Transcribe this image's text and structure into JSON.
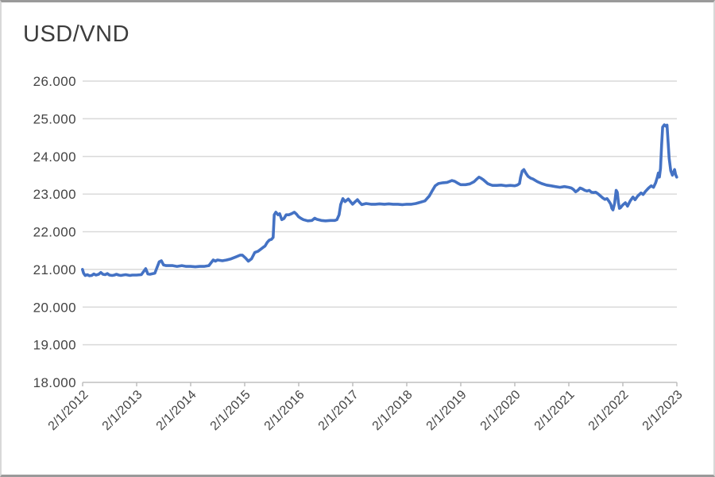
{
  "chart_data": {
    "type": "line",
    "title": "USD/VND",
    "grid": "horizontal",
    "legend": "none",
    "x_axis": {
      "tick_labels": [
        "2/1/2012",
        "2/1/2013",
        "2/1/2014",
        "2/1/2015",
        "2/1/2016",
        "2/1/2017",
        "2/1/2018",
        "2/1/2019",
        "2/1/2020",
        "2/1/2021",
        "2/1/2022",
        "2/1/2023"
      ],
      "range_decimal_years": [
        2012.083,
        2023.083
      ]
    },
    "y_axis": {
      "tick_labels": [
        "26.000",
        "25.000",
        "24.000",
        "23.000",
        "22.000",
        "21.000",
        "20.000",
        "19.000",
        "18.000"
      ],
      "min": 18000,
      "max": 26000,
      "step": 1000
    },
    "series": [
      {
        "name": "USD/VND",
        "points_decimal_year_vnd": [
          [
            2012.08,
            21000
          ],
          [
            2012.1,
            20900
          ],
          [
            2012.13,
            20840
          ],
          [
            2012.17,
            20860
          ],
          [
            2012.21,
            20830
          ],
          [
            2012.25,
            20840
          ],
          [
            2012.29,
            20880
          ],
          [
            2012.33,
            20850
          ],
          [
            2012.38,
            20870
          ],
          [
            2012.42,
            20920
          ],
          [
            2012.46,
            20870
          ],
          [
            2012.5,
            20860
          ],
          [
            2012.54,
            20890
          ],
          [
            2012.58,
            20850
          ],
          [
            2012.63,
            20840
          ],
          [
            2012.67,
            20850
          ],
          [
            2012.71,
            20870
          ],
          [
            2012.75,
            20850
          ],
          [
            2012.79,
            20840
          ],
          [
            2012.83,
            20850
          ],
          [
            2012.88,
            20860
          ],
          [
            2012.92,
            20850
          ],
          [
            2012.96,
            20840
          ],
          [
            2013.0,
            20850
          ],
          [
            2013.08,
            20850
          ],
          [
            2013.17,
            20860
          ],
          [
            2013.25,
            21020
          ],
          [
            2013.29,
            20880
          ],
          [
            2013.33,
            20870
          ],
          [
            2013.42,
            20900
          ],
          [
            2013.5,
            21200
          ],
          [
            2013.54,
            21230
          ],
          [
            2013.58,
            21120
          ],
          [
            2013.63,
            21100
          ],
          [
            2013.67,
            21100
          ],
          [
            2013.75,
            21100
          ],
          [
            2013.83,
            21080
          ],
          [
            2013.92,
            21100
          ],
          [
            2014.0,
            21080
          ],
          [
            2014.08,
            21080
          ],
          [
            2014.17,
            21070
          ],
          [
            2014.25,
            21080
          ],
          [
            2014.33,
            21080
          ],
          [
            2014.42,
            21100
          ],
          [
            2014.5,
            21250
          ],
          [
            2014.54,
            21220
          ],
          [
            2014.58,
            21250
          ],
          [
            2014.67,
            21230
          ],
          [
            2014.75,
            21250
          ],
          [
            2014.83,
            21280
          ],
          [
            2014.92,
            21330
          ],
          [
            2015.0,
            21380
          ],
          [
            2015.04,
            21380
          ],
          [
            2015.1,
            21300
          ],
          [
            2015.15,
            21220
          ],
          [
            2015.21,
            21280
          ],
          [
            2015.27,
            21450
          ],
          [
            2015.33,
            21480
          ],
          [
            2015.42,
            21580
          ],
          [
            2015.46,
            21620
          ],
          [
            2015.5,
            21720
          ],
          [
            2015.54,
            21780
          ],
          [
            2015.58,
            21800
          ],
          [
            2015.61,
            21850
          ],
          [
            2015.63,
            22450
          ],
          [
            2015.66,
            22520
          ],
          [
            2015.7,
            22450
          ],
          [
            2015.73,
            22480
          ],
          [
            2015.77,
            22320
          ],
          [
            2015.81,
            22350
          ],
          [
            2015.85,
            22450
          ],
          [
            2015.9,
            22450
          ],
          [
            2015.95,
            22480
          ],
          [
            2016.0,
            22520
          ],
          [
            2016.04,
            22470
          ],
          [
            2016.08,
            22400
          ],
          [
            2016.13,
            22350
          ],
          [
            2016.17,
            22320
          ],
          [
            2016.25,
            22290
          ],
          [
            2016.33,
            22300
          ],
          [
            2016.38,
            22360
          ],
          [
            2016.42,
            22330
          ],
          [
            2016.5,
            22300
          ],
          [
            2016.58,
            22290
          ],
          [
            2016.67,
            22300
          ],
          [
            2016.75,
            22300
          ],
          [
            2016.79,
            22320
          ],
          [
            2016.83,
            22450
          ],
          [
            2016.86,
            22720
          ],
          [
            2016.9,
            22880
          ],
          [
            2016.94,
            22800
          ],
          [
            2017.0,
            22870
          ],
          [
            2017.04,
            22800
          ],
          [
            2017.08,
            22730
          ],
          [
            2017.13,
            22800
          ],
          [
            2017.17,
            22850
          ],
          [
            2017.21,
            22780
          ],
          [
            2017.25,
            22720
          ],
          [
            2017.33,
            22750
          ],
          [
            2017.42,
            22730
          ],
          [
            2017.5,
            22730
          ],
          [
            2017.58,
            22740
          ],
          [
            2017.67,
            22730
          ],
          [
            2017.75,
            22740
          ],
          [
            2017.83,
            22730
          ],
          [
            2017.92,
            22730
          ],
          [
            2018.0,
            22720
          ],
          [
            2018.08,
            22730
          ],
          [
            2018.17,
            22730
          ],
          [
            2018.25,
            22750
          ],
          [
            2018.33,
            22780
          ],
          [
            2018.42,
            22820
          ],
          [
            2018.5,
            22950
          ],
          [
            2018.56,
            23100
          ],
          [
            2018.61,
            23220
          ],
          [
            2018.67,
            23280
          ],
          [
            2018.75,
            23300
          ],
          [
            2018.83,
            23310
          ],
          [
            2018.92,
            23360
          ],
          [
            2018.97,
            23340
          ],
          [
            2019.04,
            23280
          ],
          [
            2019.08,
            23250
          ],
          [
            2019.17,
            23250
          ],
          [
            2019.25,
            23270
          ],
          [
            2019.33,
            23330
          ],
          [
            2019.38,
            23400
          ],
          [
            2019.42,
            23450
          ],
          [
            2019.46,
            23420
          ],
          [
            2019.5,
            23380
          ],
          [
            2019.54,
            23330
          ],
          [
            2019.58,
            23280
          ],
          [
            2019.63,
            23250
          ],
          [
            2019.67,
            23230
          ],
          [
            2019.75,
            23230
          ],
          [
            2019.83,
            23240
          ],
          [
            2019.92,
            23220
          ],
          [
            2020.0,
            23230
          ],
          [
            2020.08,
            23220
          ],
          [
            2020.13,
            23240
          ],
          [
            2020.17,
            23280
          ],
          [
            2020.19,
            23450
          ],
          [
            2020.22,
            23610
          ],
          [
            2020.25,
            23650
          ],
          [
            2020.29,
            23550
          ],
          [
            2020.33,
            23470
          ],
          [
            2020.38,
            23420
          ],
          [
            2020.42,
            23400
          ],
          [
            2020.5,
            23330
          ],
          [
            2020.58,
            23280
          ],
          [
            2020.67,
            23240
          ],
          [
            2020.75,
            23220
          ],
          [
            2020.83,
            23200
          ],
          [
            2020.92,
            23180
          ],
          [
            2021.0,
            23200
          ],
          [
            2021.08,
            23180
          ],
          [
            2021.13,
            23160
          ],
          [
            2021.17,
            23120
          ],
          [
            2021.21,
            23060
          ],
          [
            2021.25,
            23100
          ],
          [
            2021.29,
            23160
          ],
          [
            2021.33,
            23140
          ],
          [
            2021.38,
            23100
          ],
          [
            2021.42,
            23080
          ],
          [
            2021.46,
            23100
          ],
          [
            2021.5,
            23050
          ],
          [
            2021.54,
            23040
          ],
          [
            2021.58,
            23050
          ],
          [
            2021.63,
            23000
          ],
          [
            2021.67,
            22950
          ],
          [
            2021.71,
            22900
          ],
          [
            2021.75,
            22860
          ],
          [
            2021.79,
            22880
          ],
          [
            2021.83,
            22800
          ],
          [
            2021.86,
            22730
          ],
          [
            2021.88,
            22620
          ],
          [
            2021.9,
            22580
          ],
          [
            2021.93,
            22750
          ],
          [
            2021.96,
            23100
          ],
          [
            2021.98,
            23050
          ],
          [
            2022.0,
            22780
          ],
          [
            2022.02,
            22620
          ],
          [
            2022.04,
            22640
          ],
          [
            2022.08,
            22710
          ],
          [
            2022.13,
            22770
          ],
          [
            2022.17,
            22680
          ],
          [
            2022.22,
            22820
          ],
          [
            2022.27,
            22920
          ],
          [
            2022.31,
            22850
          ],
          [
            2022.36,
            22950
          ],
          [
            2022.42,
            23030
          ],
          [
            2022.46,
            22990
          ],
          [
            2022.5,
            23070
          ],
          [
            2022.56,
            23160
          ],
          [
            2022.61,
            23220
          ],
          [
            2022.65,
            23180
          ],
          [
            2022.69,
            23300
          ],
          [
            2022.72,
            23440
          ],
          [
            2022.74,
            23560
          ],
          [
            2022.76,
            23450
          ],
          [
            2022.78,
            23680
          ],
          [
            2022.8,
            24300
          ],
          [
            2022.82,
            24780
          ],
          [
            2022.85,
            24840
          ],
          [
            2022.88,
            24800
          ],
          [
            2022.9,
            24830
          ],
          [
            2022.92,
            24400
          ],
          [
            2022.94,
            23950
          ],
          [
            2022.97,
            23620
          ],
          [
            2023.0,
            23500
          ],
          [
            2023.02,
            23580
          ],
          [
            2023.04,
            23650
          ],
          [
            2023.06,
            23520
          ],
          [
            2023.08,
            23450
          ]
        ]
      }
    ]
  },
  "styles": {
    "line_color": "#4472C4",
    "gridline_color": "#D9D9D9",
    "axis_color": "#BFBFBF",
    "label_color": "#444444",
    "title_color": "#3D3D3D",
    "background": "#FFFFFF"
  }
}
